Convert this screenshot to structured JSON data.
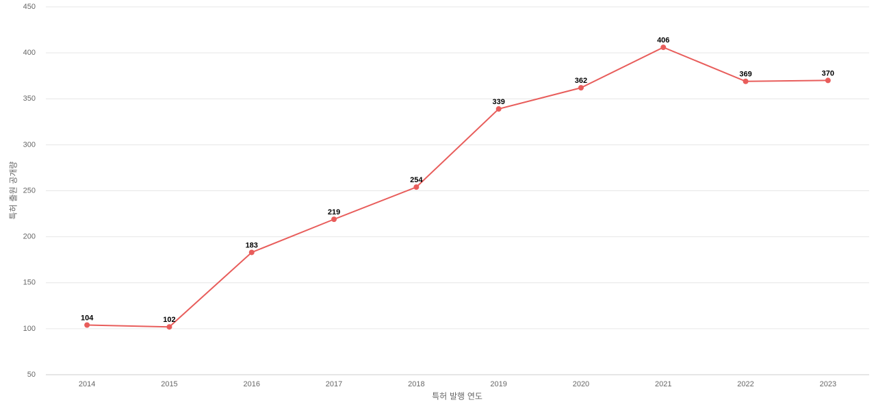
{
  "chart_data": {
    "type": "line",
    "x_label": "특허 발행 연도",
    "y_label": "특허 출원 공개량",
    "categories": [
      "2014",
      "2015",
      "2016",
      "2017",
      "2018",
      "2019",
      "2020",
      "2021",
      "2022",
      "2023"
    ],
    "series": [
      {
        "color": "#e85d5b",
        "values": [
          104,
          102,
          183,
          219,
          254,
          339,
          362,
          406,
          369,
          370
        ]
      }
    ],
    "ylim": [
      50,
      450
    ],
    "yticks": [
      50,
      100,
      150,
      200,
      250,
      300,
      350,
      400,
      450
    ],
    "grid": true
  }
}
